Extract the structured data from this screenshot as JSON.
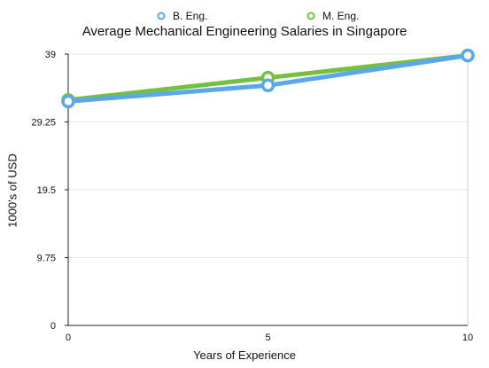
{
  "chart_data": {
    "type": "line",
    "title": "Average Mechanical Engineering Salaries in Singapore",
    "xlabel": "Years of Experience",
    "ylabel": "1000's of USD",
    "x": [
      0,
      5,
      10
    ],
    "x_ticks": [
      "0",
      "5",
      "10"
    ],
    "y_ticks": [
      "0",
      "9.75",
      "19.5",
      "29.25",
      "39"
    ],
    "xlim": [
      0,
      10
    ],
    "ylim": [
      0,
      39
    ],
    "grid": true,
    "legend_position": "top",
    "series": [
      {
        "name": "B. Eng.",
        "values": [
          32.2,
          34.5,
          38.8
        ],
        "color": "#5aa7ec"
      },
      {
        "name": "M. Eng.",
        "values": [
          32.4,
          35.6,
          38.8
        ],
        "color": "#74c142"
      }
    ]
  }
}
